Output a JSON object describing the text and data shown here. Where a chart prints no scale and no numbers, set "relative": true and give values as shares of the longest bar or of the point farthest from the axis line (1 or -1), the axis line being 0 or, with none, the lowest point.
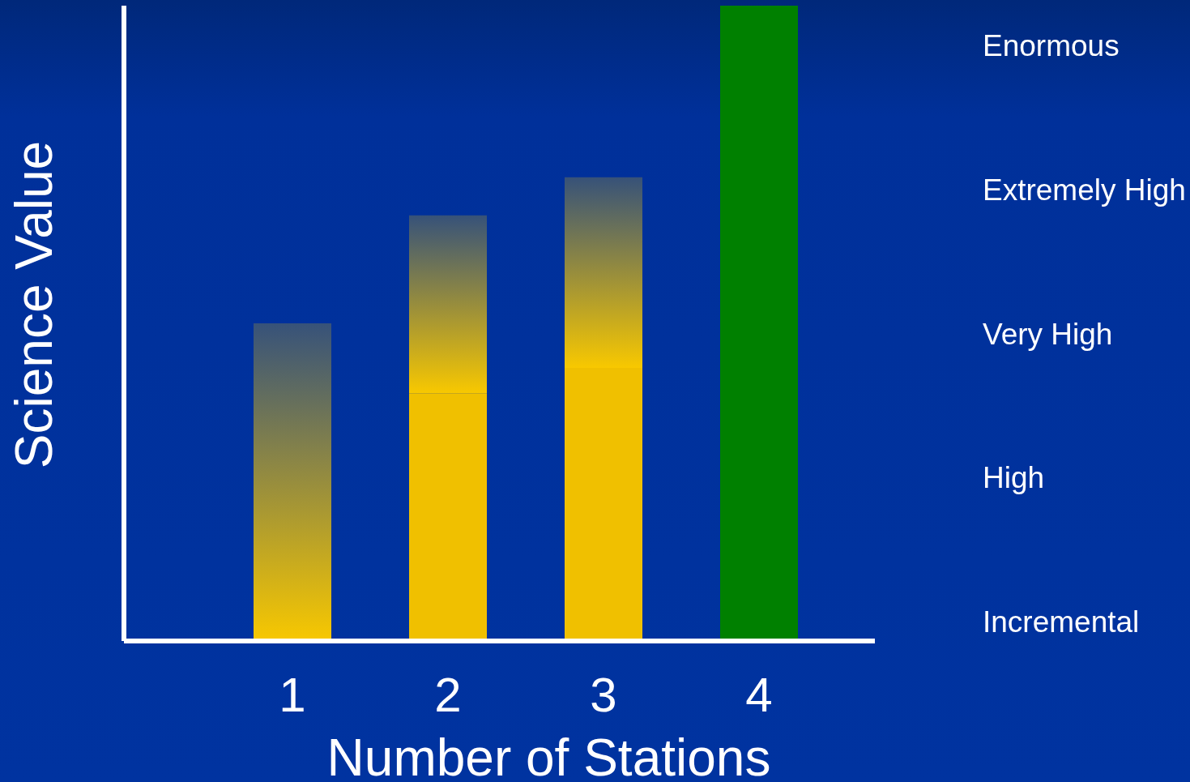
{
  "chart_data": {
    "type": "bar",
    "xlabel": "Number of Stations",
    "ylabel": "Science Value",
    "categories": [
      "1",
      "2",
      "3",
      "4"
    ],
    "stacked": true,
    "relative": true,
    "series": [
      {
        "colors": [
          null,
          "#f0c000",
          "#f0c000",
          "#008000"
        ],
        "values": [
          null,
          0.39,
          0.43,
          1
        ]
      },
      {
        "color": "#f8c800",
        "values": [
          0.5,
          0.28,
          0.3,
          null
        ]
      }
    ],
    "annotations": [
      "Enormous",
      "Extremely High",
      "Very High",
      "High",
      "Incremental"
    ],
    "grid": false,
    "legend": false
  }
}
